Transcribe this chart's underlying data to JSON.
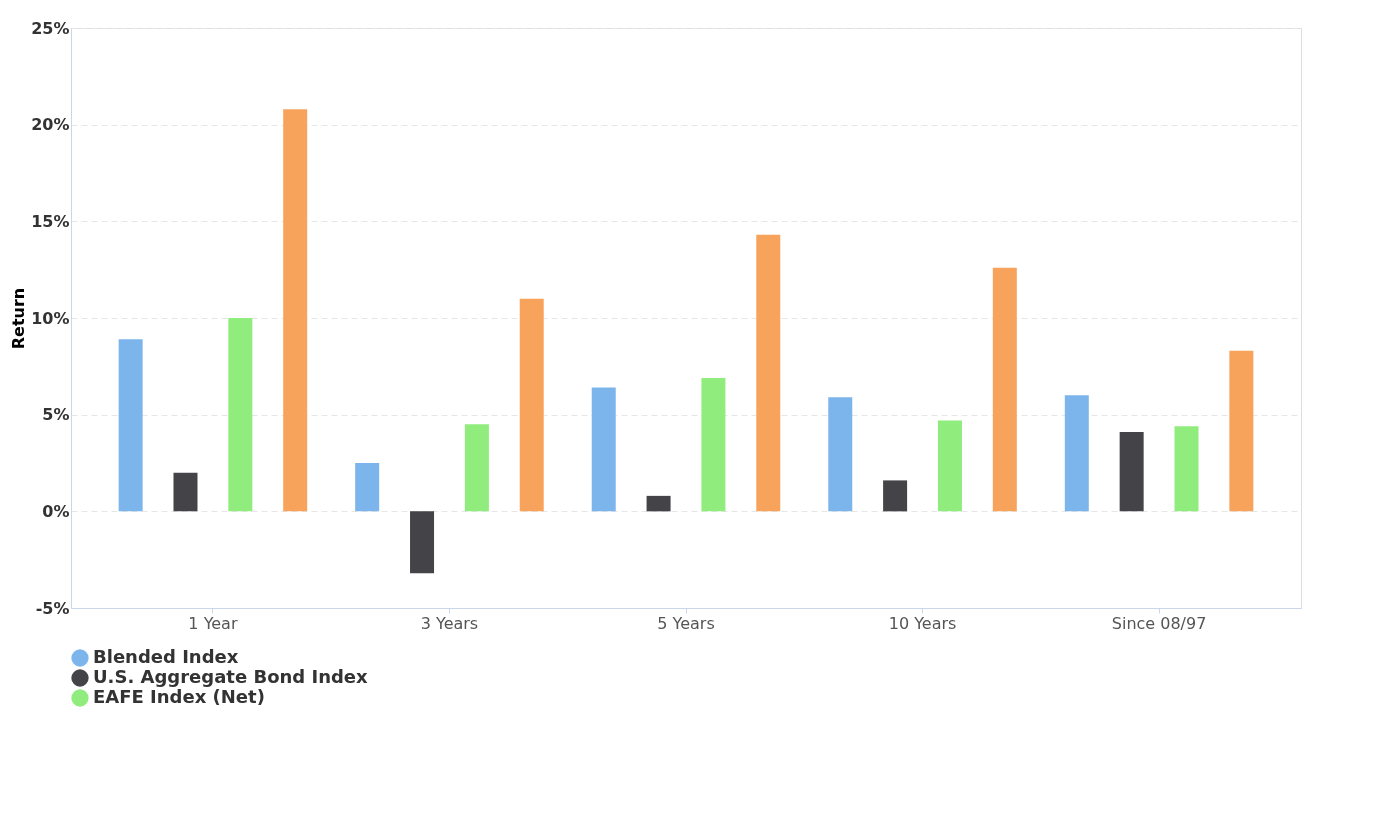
{
  "chart_data": {
    "type": "bar",
    "ylabel": "Return",
    "categories": [
      "1 Year",
      "3 Years",
      "5 Years",
      "10 Years",
      "Since 08/97"
    ],
    "series": [
      {
        "name": "Blended Index",
        "color": "#7cb5ec",
        "values": [
          8.9,
          2.5,
          6.4,
          5.9,
          6.0
        ]
      },
      {
        "name": "U.S. Aggregate Bond Index",
        "color": "#434348",
        "values": [
          2.0,
          -3.2,
          0.8,
          1.6,
          4.1
        ]
      },
      {
        "name": "EAFE Index (Net)",
        "color": "#90ed7d",
        "values": [
          10.0,
          4.5,
          6.9,
          4.7,
          4.4
        ]
      },
      {
        "color": "#f7a35c",
        "values": [
          20.8,
          11.0,
          14.3,
          12.6,
          8.3
        ]
      }
    ],
    "ylim": [
      -5,
      25
    ],
    "yticks": [
      {
        "value": -5,
        "label": "-5%"
      },
      {
        "value": 0,
        "label": "0%"
      },
      {
        "value": 5,
        "label": "5%"
      },
      {
        "value": 10,
        "label": "10%"
      },
      {
        "value": 15,
        "label": "15%"
      },
      {
        "value": 20,
        "label": "20%"
      },
      {
        "value": 25,
        "label": "25%"
      }
    ],
    "grid": "y",
    "legend": "bottom"
  }
}
